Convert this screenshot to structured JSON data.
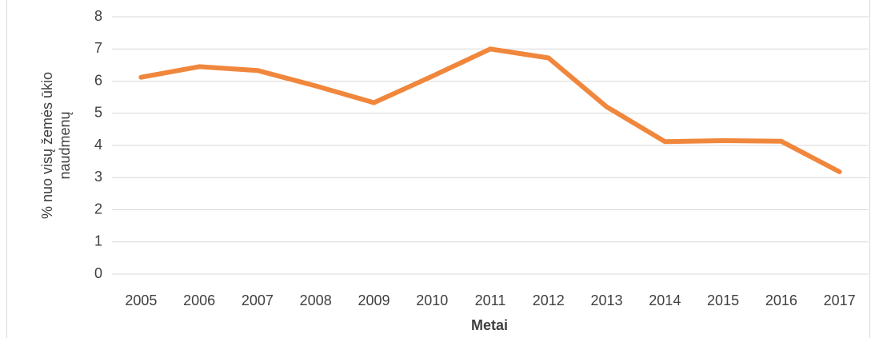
{
  "chart_data": {
    "type": "line",
    "y_label": [
      "% nuo visų žemės ūkio",
      "naudmenų"
    ],
    "x_label": "Metai",
    "categories": [
      "2005",
      "2006",
      "2007",
      "2008",
      "2009",
      "2010",
      "2011",
      "2012",
      "2013",
      "2014",
      "2015",
      "2016",
      "2017"
    ],
    "values": [
      6.12,
      6.45,
      6.33,
      5.85,
      5.33,
      6.15,
      7.0,
      6.72,
      5.2,
      4.12,
      4.15,
      4.13,
      3.18
    ],
    "color": "#f0873c",
    "ylim": [
      0,
      8
    ],
    "yticks": [
      0,
      1,
      2,
      3,
      4,
      5,
      6,
      7,
      8
    ],
    "grid": true
  }
}
